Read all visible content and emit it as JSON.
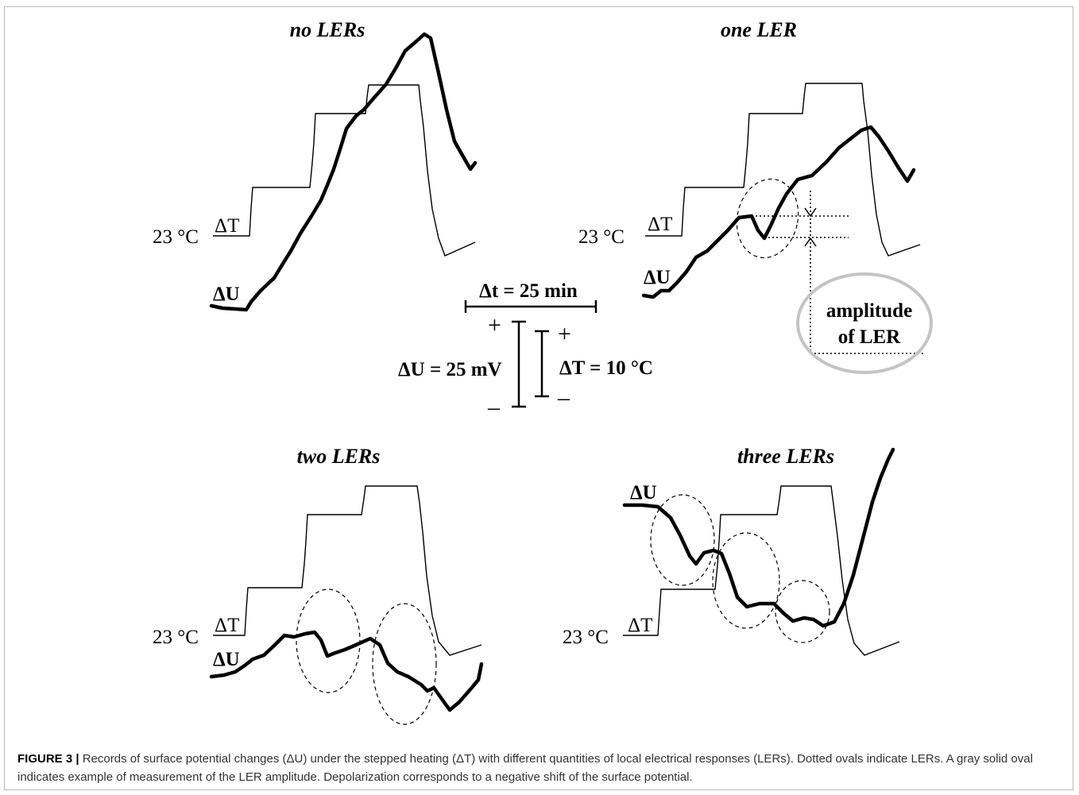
{
  "panels": {
    "no_lers": {
      "title": "no LERs",
      "temp_label": "23 °C",
      "dt_label": "ΔT",
      "du_label": "ΔU"
    },
    "one_ler": {
      "title": "one LER",
      "temp_label": "23 °C",
      "dt_label": "ΔT",
      "du_label": "ΔU"
    },
    "two_lers": {
      "title": "two LERs",
      "temp_label": "23 °C",
      "dt_label": "ΔT",
      "du_label": "ΔU"
    },
    "three_lers": {
      "title": "three LERs",
      "temp_label": "23 °C",
      "dt_label": "ΔT",
      "du_label": "ΔU"
    }
  },
  "amplitude_label": {
    "line1": "amplitude",
    "line2": "of LER"
  },
  "scale_bars": {
    "time": "Δt = 25 min",
    "voltage": "ΔU = 25 mV",
    "temperature": "ΔT = 10 °C",
    "plus_sign": "+",
    "minus_sign": "–"
  },
  "caption": {
    "label": "FIGURE 3 |",
    "text": "Records of surface potential changes (ΔU) under the stepped heating (ΔT) with different quantities of local electrical responses (LERs). Dotted ovals indicate LERs. A gray solid oval indicates example of measurement of the LER amplitude. Depolarization corresponds to a negative shift of the surface potential."
  },
  "colors": {
    "trace": "#000000",
    "amplitude_oval": "#c4c4c4",
    "frame": "#b8b8b8"
  }
}
